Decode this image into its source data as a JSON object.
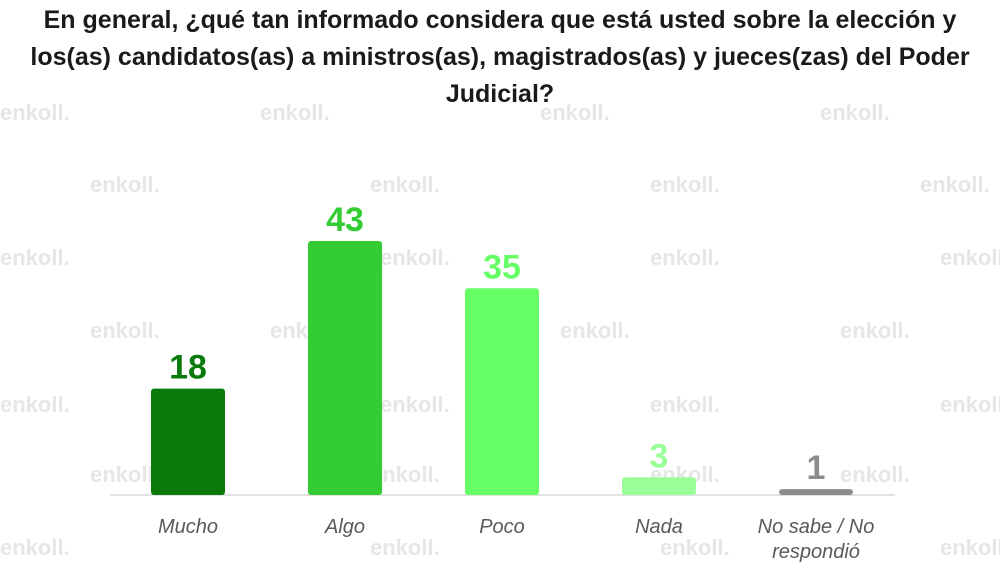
{
  "chart_data": {
    "type": "bar",
    "title": "En general, ¿qué tan informado considera que está usted sobre la elección y los(as) candidatos(as) a ministros(as), magistrados(as) y jueces(zas) del Poder Judicial?",
    "categories": [
      "Mucho",
      "Algo",
      "Poco",
      "Nada",
      "No sabe / No respondió"
    ],
    "values": [
      18,
      43,
      35,
      3,
      1
    ],
    "colors": [
      "#0a7a0a",
      "#33cc33",
      "#66ff66",
      "#99ff99",
      "#8c8c8c"
    ],
    "value_label_colors": [
      "#0a7a0a",
      "#33cc33",
      "#66ff66",
      "#99ff99",
      "#8c8c8c"
    ],
    "ylim": [
      0,
      43
    ],
    "grid": false,
    "legend": "none"
  },
  "watermark": {
    "text": "enkoll."
  }
}
